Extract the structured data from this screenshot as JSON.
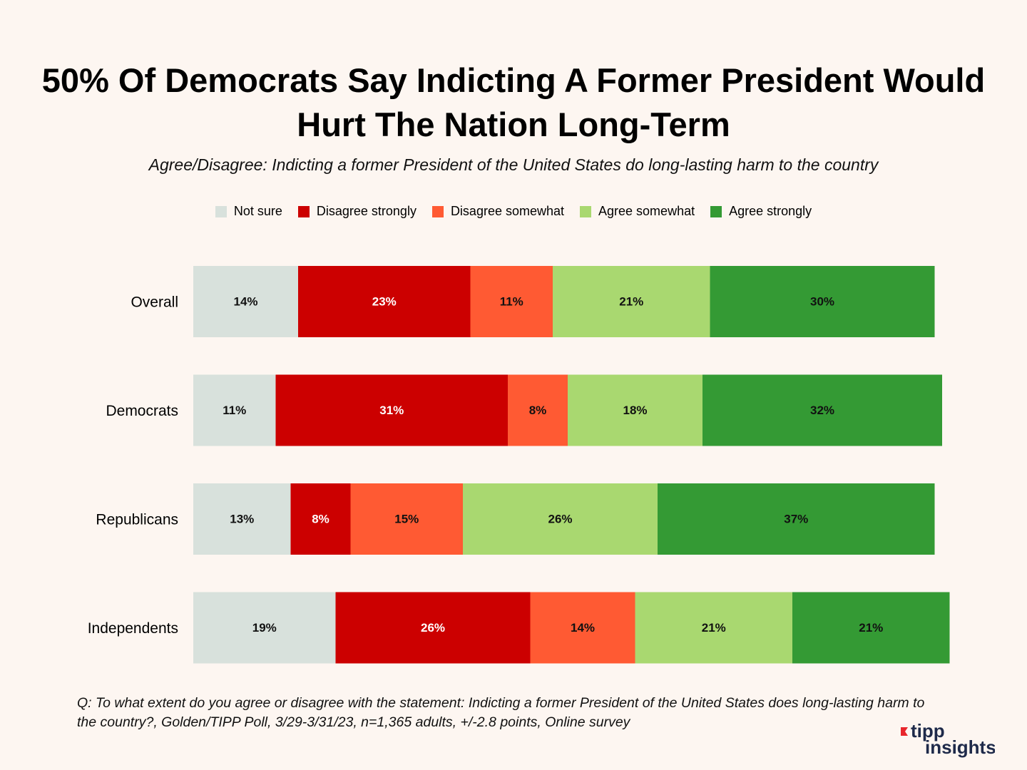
{
  "chart_data": {
    "type": "stacked-bar",
    "title": "50% Of Democrats Say Indicting A Former President Would Hurt The Nation Long-Term",
    "subtitle": "Agree/Disagree: Indicting a former President of the United States do long-lasting harm to the country",
    "footnote": "Q: To what extent do you agree or disagree with the statement: Indicting a former President of the United States does long-lasting harm to the country?, Golden/TIPP Poll, 3/29-3/31/23, n=1,365 adults, +/-2.8 points, Online survey",
    "categories": [
      "Overall",
      "Democrats",
      "Republicans",
      "Independents"
    ],
    "series": [
      {
        "name": "Not sure",
        "color": "#d8e1dc",
        "values": [
          14,
          11,
          13,
          19
        ],
        "value_labels": [
          "14%",
          "11%",
          "13%",
          "19%"
        ]
      },
      {
        "name": "Disagree strongly",
        "color": "#cc0000",
        "values": [
          23,
          31,
          8,
          26
        ],
        "value_labels": [
          "23%",
          "31%",
          "8%",
          "26%"
        ]
      },
      {
        "name": "Disagree somewhat",
        "color": "#ff5a33",
        "values": [
          11,
          8,
          15,
          14
        ],
        "value_labels": [
          "11%",
          "8%",
          "15%",
          "14%"
        ]
      },
      {
        "name": "Agree somewhat",
        "color": "#a9d870",
        "values": [
          21,
          18,
          26,
          21
        ],
        "value_labels": [
          "21%",
          "18%",
          "26%",
          "21%"
        ]
      },
      {
        "name": "Agree strongly",
        "color": "#349a34",
        "values": [
          30,
          32,
          37,
          21
        ],
        "value_labels": [
          "30%",
          "32%",
          "37%",
          "21%"
        ]
      }
    ]
  },
  "logo": {
    "line1": "tipp",
    "line2": "insights"
  }
}
